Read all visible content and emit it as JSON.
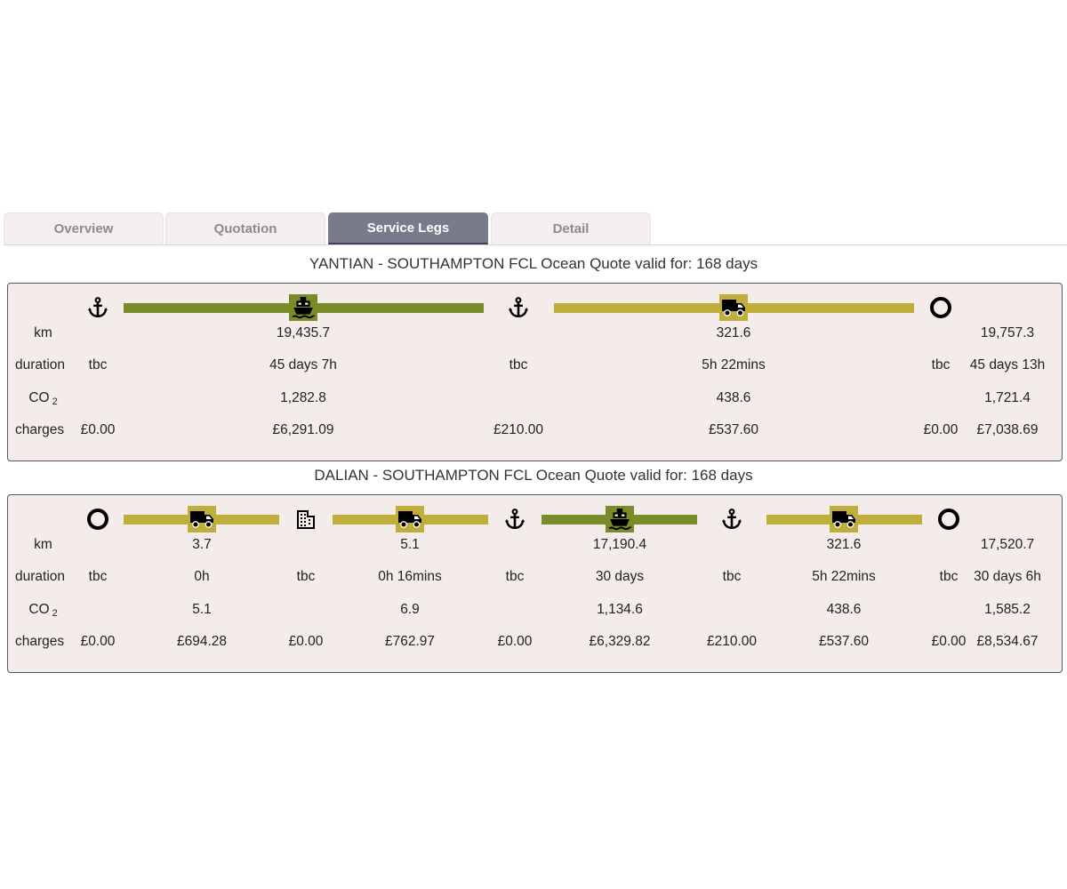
{
  "tabs": [
    "Overview",
    "Quotation",
    "Service Legs",
    "Detail"
  ],
  "active_tab": "Service Legs",
  "row_labels": {
    "km": "km",
    "duration": "duration",
    "co2_prefix": "CO",
    "co2_sub": "2",
    "charges": "charges"
  },
  "colors": {
    "sea": "#7a8b2a",
    "road": "#bfae39",
    "panel": "#f3eceb",
    "active_tab": "#797a8a"
  },
  "quotes": [
    {
      "title": "YANTIAN - SOUTHAMPTON FCL Ocean Quote valid for: 168 days",
      "nodes": [
        {
          "icon": "anchor-icon",
          "duration": "tbc",
          "charges": "£0.00"
        },
        {
          "icon": "anchor-icon",
          "duration": "tbc",
          "charges": "£210.00"
        },
        {
          "icon": "destination-ring-icon",
          "duration": "tbc",
          "charges": "£0.00"
        }
      ],
      "legs": [
        {
          "mode": "sea",
          "icon": "ship-icon",
          "km": "19,435.7",
          "duration": "45 days 7h",
          "co2": "1,282.8",
          "charges": "£6,291.09"
        },
        {
          "mode": "road",
          "icon": "truck-icon",
          "km": "321.6",
          "duration": "5h 22mins",
          "co2": "438.6",
          "charges": "£537.60"
        }
      ],
      "total": {
        "km": "19,757.3",
        "duration": "45 days 13h",
        "co2": "1,721.4",
        "charges": "£7,038.69"
      }
    },
    {
      "title": "DALIAN - SOUTHAMPTON FCL Ocean Quote valid for: 168 days",
      "nodes": [
        {
          "icon": "origin-ring-icon",
          "duration": "tbc",
          "charges": "£0.00"
        },
        {
          "icon": "building-icon",
          "duration": "tbc",
          "charges": "£0.00"
        },
        {
          "icon": "anchor-icon",
          "duration": "tbc",
          "charges": "£0.00"
        },
        {
          "icon": "anchor-icon",
          "duration": "tbc",
          "charges": "£210.00"
        },
        {
          "icon": "destination-ring-icon",
          "duration": "tbc",
          "charges": "£0.00"
        }
      ],
      "legs": [
        {
          "mode": "road",
          "icon": "truck-icon",
          "km": "3.7",
          "duration": "0h",
          "co2": "5.1",
          "charges": "£694.28"
        },
        {
          "mode": "road",
          "icon": "truck-icon",
          "km": "5.1",
          "duration": "0h 16mins",
          "co2": "6.9",
          "charges": "£762.97"
        },
        {
          "mode": "sea",
          "icon": "ship-icon",
          "km": "17,190.4",
          "duration": "30 days",
          "co2": "1,134.6",
          "charges": "£6,329.82"
        },
        {
          "mode": "road",
          "icon": "truck-icon",
          "km": "321.6",
          "duration": "5h 22mins",
          "co2": "438.6",
          "charges": "£537.60"
        }
      ],
      "total": {
        "km": "17,520.7",
        "duration": "30 days 6h",
        "co2": "1,585.2",
        "charges": "£8,534.67"
      }
    }
  ]
}
